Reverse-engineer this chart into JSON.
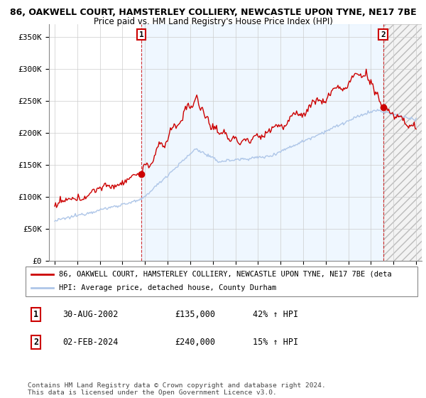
{
  "title_line1": "86, OAKWELL COURT, HAMSTERLEY COLLIERY, NEWCASTLE UPON TYNE, NE17 7BE",
  "title_line2": "Price paid vs. HM Land Registry's House Price Index (HPI)",
  "ylabel_ticks": [
    "£0",
    "£50K",
    "£100K",
    "£150K",
    "£200K",
    "£250K",
    "£300K",
    "£350K"
  ],
  "ytick_vals": [
    0,
    50000,
    100000,
    150000,
    200000,
    250000,
    300000,
    350000
  ],
  "ylim": [
    0,
    370000
  ],
  "hpi_color": "#aec6e8",
  "price_color": "#cc0000",
  "bg_highlight": "#ddeeff",
  "sale1_year": 2002.667,
  "sale2_year": 2024.083,
  "sale1_price": 135000,
  "sale2_price": 240000,
  "sale1_date_label": "30-AUG-2002",
  "sale2_date_label": "02-FEB-2024",
  "sale1_hpi_pct": "42%",
  "sale2_hpi_pct": "15%",
  "legend_label1": "86, OAKWELL COURT, HAMSTERLEY COLLIERY, NEWCASTLE UPON TYNE, NE17 7BE (deta",
  "legend_label2": "HPI: Average price, detached house, County Durham",
  "footnote1": "Contains HM Land Registry data © Crown copyright and database right 2024.",
  "footnote2": "This data is licensed under the Open Government Licence v3.0.",
  "bg_color": "#ffffff",
  "grid_color": "#cccccc",
  "xlim_left": 1994.5,
  "xlim_right": 2027.5
}
